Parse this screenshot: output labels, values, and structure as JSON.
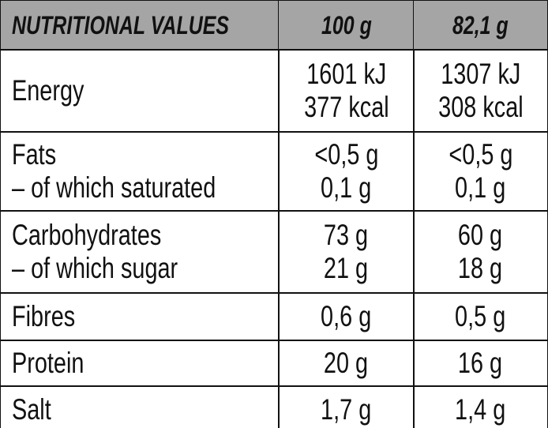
{
  "table": {
    "header": [
      "NUTRITIONAL VALUES",
      "100 g",
      "82,1 g"
    ],
    "rows": [
      [
        [
          "Energy"
        ],
        [
          "1601 kJ",
          "377 kcal"
        ],
        [
          "1307 kJ",
          "308 kcal"
        ]
      ],
      [
        [
          "Fats",
          "– of which saturated"
        ],
        [
          "<0,5 g",
          "0,1 g"
        ],
        [
          "<0,5 g",
          "0,1 g"
        ]
      ],
      [
        [
          "Carbohydrates",
          "– of which sugar"
        ],
        [
          "73 g",
          "21 g"
        ],
        [
          "60 g",
          "18 g"
        ]
      ],
      [
        [
          "Fibres"
        ],
        [
          "0,6 g"
        ],
        [
          "0,5 g"
        ]
      ],
      [
        [
          "Protein"
        ],
        [
          "20 g"
        ],
        [
          "16 g"
        ]
      ],
      [
        [
          "Salt"
        ],
        [
          "1,7 g"
        ],
        [
          "1,4 g"
        ]
      ]
    ]
  }
}
